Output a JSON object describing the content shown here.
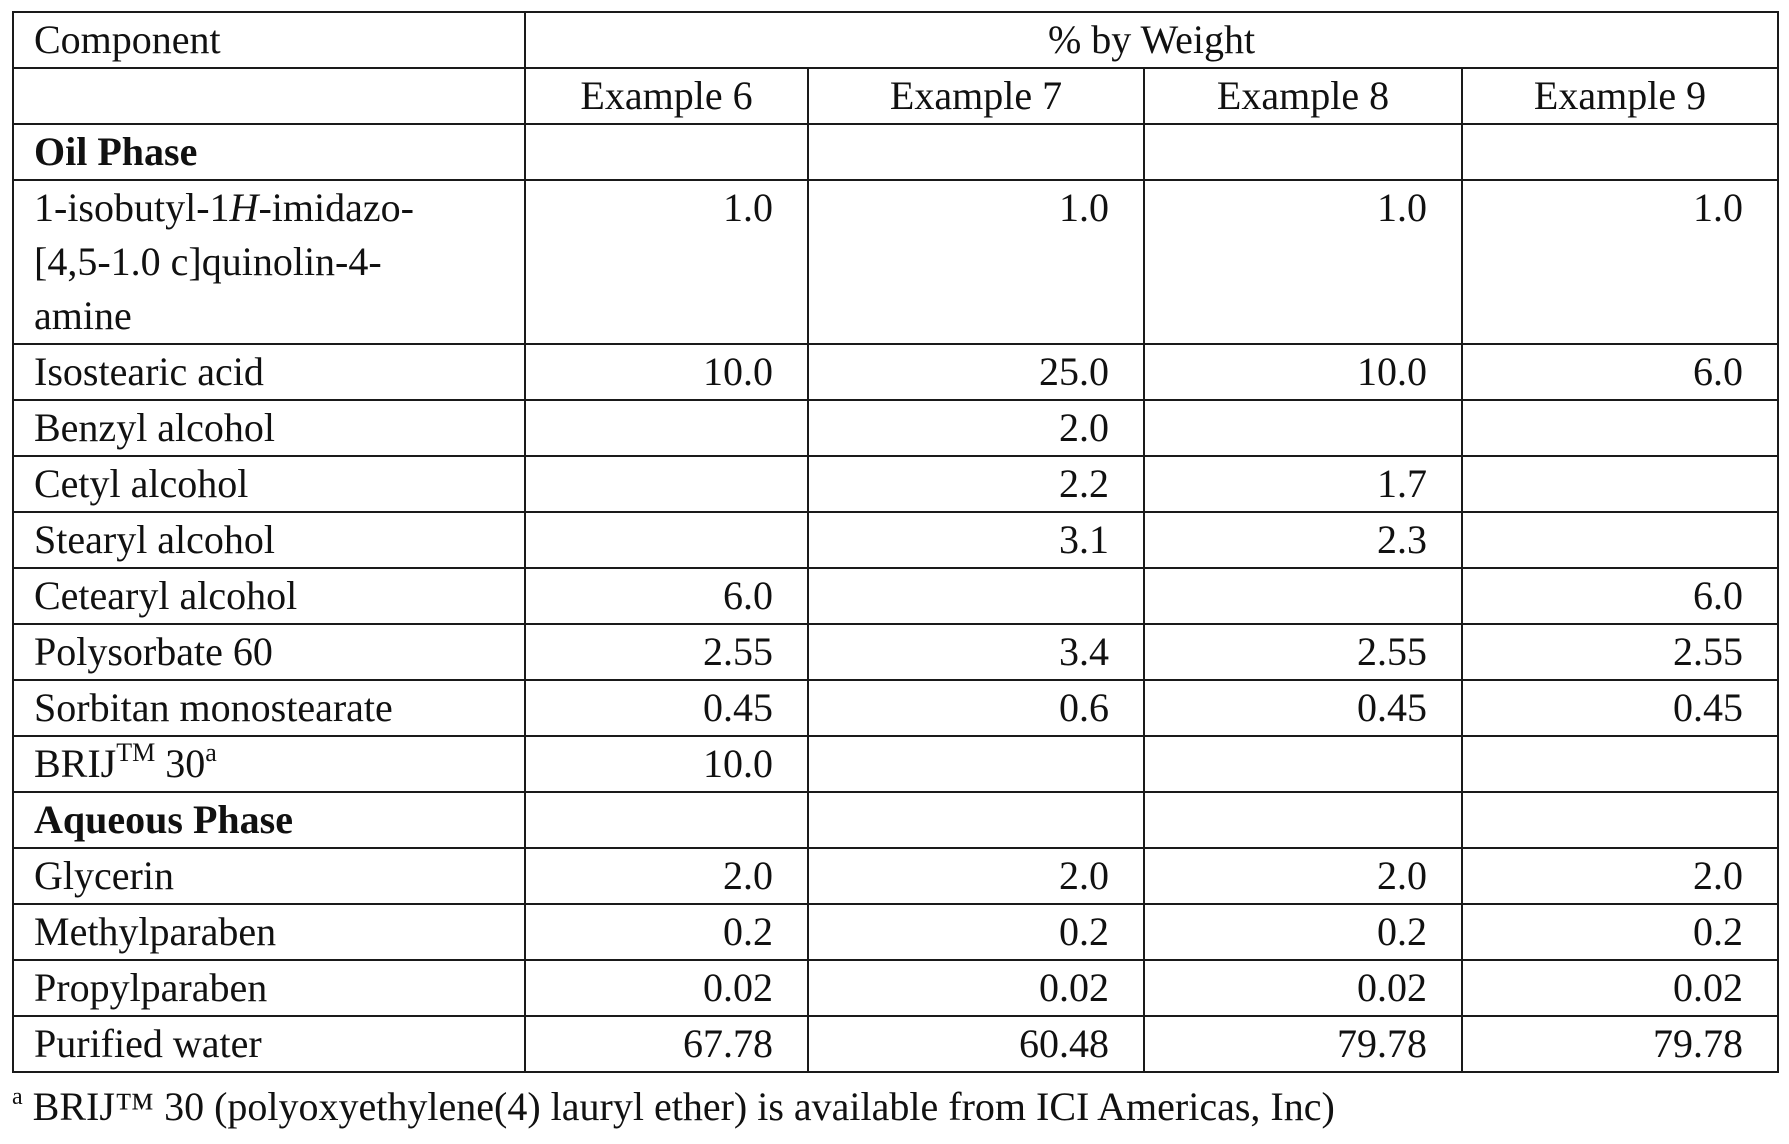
{
  "table": {
    "header_component": "Component",
    "header_group": "% by Weight",
    "examples": [
      "Example 6",
      "Example 7",
      "Example 8",
      "Example 9"
    ],
    "sections": {
      "oil": "Oil Phase",
      "aqueous": "Aqueous Phase"
    },
    "compound": {
      "line1_pre": "1-isobutyl-1",
      "line1_italic": "H",
      "line1_post": "-imidazo-",
      "line2": "[4,5-1.0 c]quinolin-4-",
      "line3": "amine",
      "values": [
        "1.0",
        "1.0",
        "1.0",
        "1.0"
      ]
    },
    "oil_rows": [
      {
        "name": "Isostearic acid",
        "values": [
          "10.0",
          "25.0",
          "10.0",
          "6.0"
        ]
      },
      {
        "name": "Benzyl alcohol",
        "values": [
          "",
          "2.0",
          "",
          ""
        ]
      },
      {
        "name": "Cetyl alcohol",
        "values": [
          "",
          "2.2",
          "1.7",
          ""
        ]
      },
      {
        "name": "Stearyl alcohol",
        "values": [
          "",
          "3.1",
          "2.3",
          ""
        ]
      },
      {
        "name": "Cetearyl alcohol",
        "values": [
          "6.0",
          "",
          "",
          "6.0"
        ]
      },
      {
        "name": "Polysorbate 60",
        "values": [
          "2.55",
          "3.4",
          "2.55",
          "2.55"
        ]
      },
      {
        "name": "Sorbitan monostearate",
        "values": [
          "0.45",
          "0.6",
          "0.45",
          "0.45"
        ]
      }
    ],
    "brij_row": {
      "name_pre": "BRIJ",
      "name_tm": "TM",
      "name_post": " 30",
      "name_sup": "a",
      "values": [
        "10.0",
        "",
        "",
        ""
      ]
    },
    "aqueous_rows": [
      {
        "name": "Glycerin",
        "values": [
          "2.0",
          "2.0",
          "2.0",
          "2.0"
        ]
      },
      {
        "name": "Methylparaben",
        "values": [
          "0.2",
          "0.2",
          "0.2",
          "0.2"
        ]
      },
      {
        "name": "Propylparaben",
        "values": [
          "0.02",
          "0.02",
          "0.02",
          "0.02"
        ]
      },
      {
        "name": "Purified water",
        "values": [
          "67.78",
          "60.48",
          "79.78",
          "79.78"
        ]
      }
    ]
  },
  "footnote": {
    "marker": "a",
    "text": " BRIJ™ 30 (polyoxyethylene(4) lauryl ether) is available from ICI Americas, Inc)"
  }
}
